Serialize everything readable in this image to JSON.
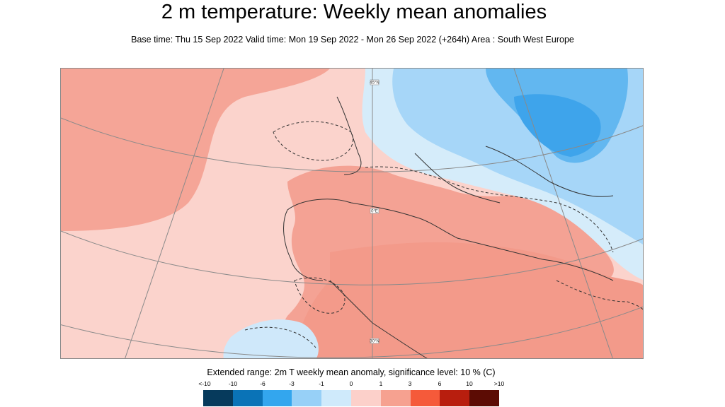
{
  "header": {
    "title": "2 m temperature: Weekly mean anomalies",
    "subtitle": "Base time: Thu 15 Sep 2022 Valid time: Mon 19 Sep 2022 - Mon 26 Sep 2022 (+264h) Area : South West Europe"
  },
  "map": {
    "lat_labels": [
      "45°N",
      "30°N"
    ],
    "lon_label": "0°E",
    "colors": {
      "ocean_base": "#fbd3cc",
      "land_warm": "#f4a294",
      "strong_warm": "#f08a7a",
      "cool_light": "#d5ecfa",
      "cool_mid": "#a6d6f8",
      "cool_strong": "#62b7f0",
      "cool_core": "#3ea4eb"
    }
  },
  "legend": {
    "title": "Extended range: 2m T weekly mean anomaly, significance level: 10 % (C)",
    "labels": [
      "<-10",
      "-10",
      "-6",
      "-3",
      "-1",
      "0",
      "1",
      "3",
      "6",
      "10",
      ">10"
    ],
    "colors": [
      "#063a5c",
      "#0a73b7",
      "#33a6ee",
      "#97d0f7",
      "#cfeafb",
      "#fcd0ca",
      "#f6a190",
      "#f55a3a",
      "#b81e0e",
      "#5c0c04"
    ]
  }
}
